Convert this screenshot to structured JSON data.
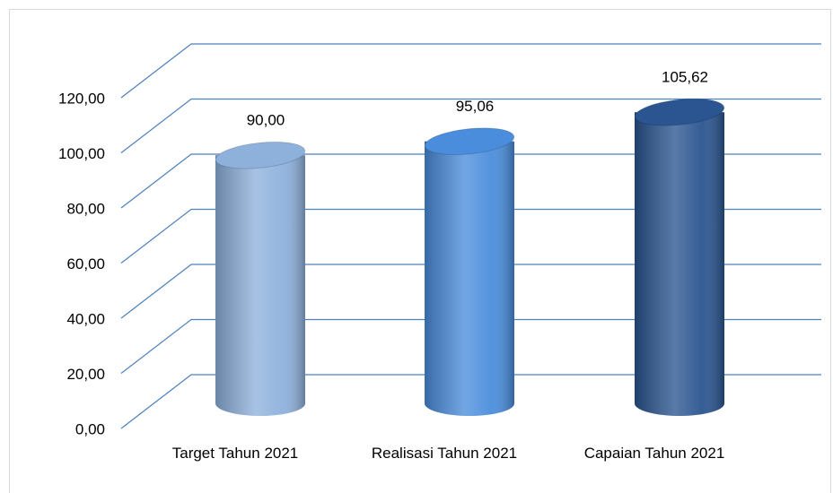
{
  "chart_data": {
    "type": "bar3d",
    "categories": [
      "Target Tahun 2021",
      "Realisasi Tahun 2021",
      "Capaian Tahun 2021"
    ],
    "values": [
      90,
      95.06,
      105.62
    ],
    "value_labels": [
      "90,00",
      "95,06",
      "105,62"
    ],
    "colors": [
      "#8eb1dc",
      "#4a8ddc",
      "#2a5590"
    ],
    "ylim": [
      0,
      120
    ],
    "yticks": [
      {
        "value": 0,
        "label": "0,00"
      },
      {
        "value": 20,
        "label": "20,00"
      },
      {
        "value": 40,
        "label": "40,00"
      },
      {
        "value": 60,
        "label": "60,00"
      },
      {
        "value": 80,
        "label": "80,00"
      },
      {
        "value": 100,
        "label": "100,00"
      },
      {
        "value": 120,
        "label": "120,00"
      }
    ],
    "grid": true
  }
}
